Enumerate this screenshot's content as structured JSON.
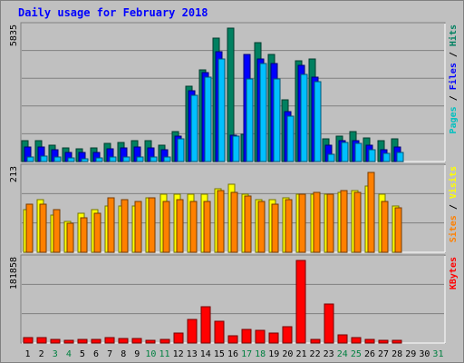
{
  "chart_data": {
    "type": "bar",
    "title": "Daily usage for February 2018",
    "categories": [
      "1",
      "2",
      "3",
      "4",
      "5",
      "6",
      "7",
      "8",
      "9",
      "10",
      "11",
      "12",
      "13",
      "14",
      "15",
      "16",
      "17",
      "18",
      "19",
      "20",
      "21",
      "22",
      "23",
      "24",
      "25",
      "26",
      "27",
      "28",
      "29",
      "30",
      "31"
    ],
    "weekend_days": [
      "3",
      "4",
      "10",
      "11",
      "17",
      "18",
      "24",
      "25",
      "31"
    ],
    "panels": [
      {
        "id": "top",
        "ymax_label": "5835",
        "ymax": 5835,
        "axis_labels": [
          {
            "text": "Pages",
            "color": "#00c0c0"
          },
          {
            "text": " / ",
            "color": "#000000"
          },
          {
            "text": "Files",
            "color": "#0000ff"
          },
          {
            "text": " / ",
            "color": "#000000"
          },
          {
            "text": "Hits",
            "color": "#008060"
          }
        ],
        "series": [
          {
            "name": "Hits",
            "color": "#008060",
            "values": [
              900,
              900,
              700,
              600,
              550,
              600,
              800,
              850,
              900,
              900,
              700,
              1300,
              3300,
              4000,
              5400,
              5835,
              1200,
              5200,
              4700,
              2700,
              4400,
              4500,
              1000,
              1100,
              1300,
              1050,
              900,
              1000,
              0,
              0,
              0
            ]
          },
          {
            "name": "Files",
            "color": "#0000ff",
            "values": [
              650,
              650,
              500,
              400,
              380,
              400,
              550,
              600,
              650,
              600,
              500,
              1100,
              3100,
              3900,
              4800,
              1150,
              4700,
              4500,
              4300,
              2200,
              4200,
              3700,
              700,
              900,
              900,
              700,
              500,
              650,
              0,
              0,
              0
            ]
          },
          {
            "name": "Pages",
            "color": "#00c0ff",
            "values": [
              200,
              250,
              200,
              150,
              130,
              170,
              180,
              200,
              200,
              200,
              200,
              1000,
              2900,
              3700,
              4500,
              1100,
              3600,
              4300,
              3600,
              2000,
              3800,
              3500,
              300,
              850,
              800,
              500,
              350,
              400,
              0,
              0,
              0
            ]
          }
        ]
      },
      {
        "id": "middle",
        "ymax_label": "213",
        "ymax": 213,
        "axis_labels": [
          {
            "text": "Sites",
            "color": "#ff8000"
          },
          {
            "text": " / ",
            "color": "#000000"
          },
          {
            "text": "Visits",
            "color": "#ffff00"
          }
        ],
        "series": [
          {
            "name": "Visits",
            "color": "#ffff00",
            "values": [
              110,
              135,
              95,
              80,
              100,
              110,
              120,
              120,
              120,
              140,
              150,
              150,
              150,
              150,
              165,
              175,
              150,
              135,
              135,
              140,
              150,
              150,
              150,
              155,
              160,
              170,
              150,
              120,
              0,
              0,
              0
            ]
          },
          {
            "name": "Sites",
            "color": "#ff8000",
            "values": [
              125,
              125,
              110,
              75,
              90,
              100,
              140,
              135,
              130,
              140,
              130,
              135,
              130,
              130,
              160,
              155,
              145,
              130,
              125,
              135,
              150,
              155,
              150,
              160,
              155,
              205,
              130,
              115,
              0,
              0,
              0
            ]
          }
        ]
      },
      {
        "id": "bottom",
        "ymax_label": "181858",
        "ymax": 181858,
        "axis_labels": [
          {
            "text": "KBytes",
            "color": "#ff0000"
          }
        ],
        "series": [
          {
            "name": "KBytes",
            "color": "#ff0000",
            "values": [
              12000,
              12000,
              8000,
              5000,
              7000,
              7000,
              12000,
              9000,
              10000,
              6000,
              7000,
              22000,
              51000,
              79000,
              47000,
              15000,
              29000,
              27000,
              21000,
              36000,
              181858,
              8000,
              86000,
              18000,
              12000,
              7000,
              6000,
              6000,
              0,
              0,
              0
            ]
          }
        ]
      }
    ]
  }
}
